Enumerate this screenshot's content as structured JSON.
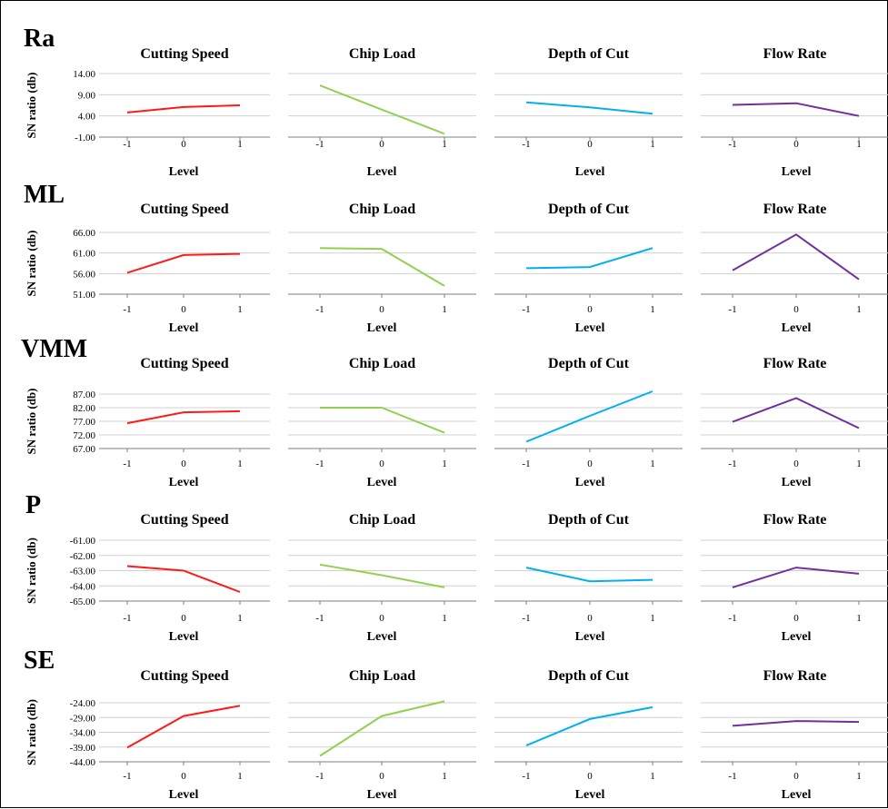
{
  "x_axis_label": "Level",
  "y_axis_label": "SN ratio (db)",
  "rows": [
    {
      "label": "Ra"
    },
    {
      "label": "ML"
    },
    {
      "label": "VMM"
    },
    {
      "label": "P"
    },
    {
      "label": "SE"
    }
  ],
  "columns": [
    {
      "title": "Cutting Speed",
      "color": "#ff1a1a"
    },
    {
      "title": "Chip Load",
      "color": "#92d050"
    },
    {
      "title": "Depth of Cut",
      "color": "#00b0f0"
    },
    {
      "title": "Flow Rate",
      "color": "#7030a0"
    }
  ],
  "chart_data": [
    {
      "type": "line",
      "row": "Ra",
      "title": "Cutting Speed",
      "x": [
        -1,
        0,
        1
      ],
      "values": [
        4.8,
        6.1,
        6.5
      ],
      "ylim": [
        -1,
        14
      ],
      "yticks": [
        "14.00",
        "9.00",
        "4.00",
        "-1.00"
      ],
      "xlabel": "Level",
      "ylabel": "SN ratio (db)"
    },
    {
      "type": "line",
      "row": "Ra",
      "title": "Chip Load",
      "x": [
        -1,
        0,
        1
      ],
      "values": [
        11.2,
        5.5,
        -0.2
      ],
      "ylim": [
        -1,
        14
      ],
      "xlabel": "Level"
    },
    {
      "type": "line",
      "row": "Ra",
      "title": "Depth of Cut",
      "x": [
        -1,
        0,
        1
      ],
      "values": [
        7.2,
        6.0,
        4.5
      ],
      "ylim": [
        -1,
        14
      ],
      "xlabel": "Level"
    },
    {
      "type": "line",
      "row": "Ra",
      "title": "Flow Rate",
      "x": [
        -1,
        0,
        1
      ],
      "values": [
        6.6,
        7.0,
        4.0
      ],
      "ylim": [
        -1,
        14
      ],
      "xlabel": "Level"
    },
    {
      "type": "line",
      "row": "ML",
      "title": "Cutting Speed",
      "x": [
        -1,
        0,
        1
      ],
      "values": [
        56.2,
        60.5,
        60.8
      ],
      "ylim": [
        51,
        66
      ],
      "yticks": [
        "66.00",
        "61.00",
        "56.00",
        "51.00"
      ],
      "xlabel": "Level",
      "ylabel": "SN ratio (db)"
    },
    {
      "type": "line",
      "row": "ML",
      "title": "Chip Load",
      "x": [
        -1,
        0,
        1
      ],
      "values": [
        62.2,
        62.0,
        53.0
      ],
      "ylim": [
        51,
        66
      ],
      "xlabel": "Level"
    },
    {
      "type": "line",
      "row": "ML",
      "title": "Depth of Cut",
      "x": [
        -1,
        0,
        1
      ],
      "values": [
        57.3,
        57.6,
        62.2
      ],
      "ylim": [
        51,
        66
      ],
      "xlabel": "Level"
    },
    {
      "type": "line",
      "row": "ML",
      "title": "Flow Rate",
      "x": [
        -1,
        0,
        1
      ],
      "values": [
        56.8,
        65.5,
        54.6
      ],
      "ylim": [
        51,
        66
      ],
      "xlabel": "Level"
    },
    {
      "type": "line",
      "row": "VMM",
      "title": "Cutting Speed",
      "x": [
        -1,
        0,
        1
      ],
      "values": [
        76.3,
        80.3,
        80.7
      ],
      "ylim": [
        67,
        87
      ],
      "yticks": [
        "87.00",
        "82.00",
        "77.00",
        "72.00",
        "67.00"
      ],
      "xlabel": "Level",
      "ylabel": "SN ratio (db)"
    },
    {
      "type": "line",
      "row": "VMM",
      "title": "Chip Load",
      "x": [
        -1,
        0,
        1
      ],
      "values": [
        82.0,
        82.0,
        72.8
      ],
      "ylim": [
        67,
        87
      ],
      "xlabel": "Level"
    },
    {
      "type": "line",
      "row": "VMM",
      "title": "Depth of Cut",
      "x": [
        -1,
        0,
        1
      ],
      "values": [
        69.5,
        79.0,
        88.0
      ],
      "ylim": [
        67,
        87
      ],
      "xlabel": "Level"
    },
    {
      "type": "line",
      "row": "VMM",
      "title": "Flow Rate",
      "x": [
        -1,
        0,
        1
      ],
      "values": [
        76.8,
        85.5,
        74.5
      ],
      "ylim": [
        67,
        87
      ],
      "xlabel": "Level"
    },
    {
      "type": "line",
      "row": "P",
      "title": "Cutting Speed",
      "x": [
        -1,
        0,
        1
      ],
      "values": [
        -62.7,
        -63.0,
        -64.4
      ],
      "ylim": [
        -65,
        -61
      ],
      "yticks": [
        "-61.00",
        "-62.00",
        "-63.00",
        "-64.00",
        "-65.00"
      ],
      "xlabel": "Level",
      "ylabel": "SN ratio (db)"
    },
    {
      "type": "line",
      "row": "P",
      "title": "Chip Load",
      "x": [
        -1,
        0,
        1
      ],
      "values": [
        -62.6,
        -63.3,
        -64.1
      ],
      "ylim": [
        -65,
        -61
      ],
      "xlabel": "Level"
    },
    {
      "type": "line",
      "row": "P",
      "title": "Depth of Cut",
      "x": [
        -1,
        0,
        1
      ],
      "values": [
        -62.8,
        -63.7,
        -63.6
      ],
      "ylim": [
        -65,
        -61
      ],
      "xlabel": "Level"
    },
    {
      "type": "line",
      "row": "P",
      "title": "Flow Rate",
      "x": [
        -1,
        0,
        1
      ],
      "values": [
        -64.1,
        -62.8,
        -63.2
      ],
      "ylim": [
        -65,
        -61
      ],
      "xlabel": "Level"
    },
    {
      "type": "line",
      "row": "SE",
      "title": "Cutting Speed",
      "x": [
        -1,
        0,
        1
      ],
      "values": [
        -39.2,
        -28.5,
        -25.0
      ],
      "ylim": [
        -44,
        -24
      ],
      "yticks": [
        "-24.00",
        "-29.00",
        "-34.00",
        "-39.00",
        "-44.00"
      ],
      "xlabel": "Level",
      "ylabel": "SN ratio (db)"
    },
    {
      "type": "line",
      "row": "SE",
      "title": "Chip Load",
      "x": [
        -1,
        0,
        1
      ],
      "values": [
        -42.0,
        -28.5,
        -23.5
      ],
      "ylim": [
        -44,
        -24
      ],
      "xlabel": "Level"
    },
    {
      "type": "line",
      "row": "SE",
      "title": "Depth of Cut",
      "x": [
        -1,
        0,
        1
      ],
      "values": [
        -38.5,
        -29.5,
        -25.5
      ],
      "ylim": [
        -44,
        -24
      ],
      "xlabel": "Level"
    },
    {
      "type": "line",
      "row": "SE",
      "title": "Flow Rate",
      "x": [
        -1,
        0,
        1
      ],
      "values": [
        -31.8,
        -30.2,
        -30.5
      ],
      "ylim": [
        -44,
        -24
      ],
      "xlabel": "Level"
    }
  ]
}
